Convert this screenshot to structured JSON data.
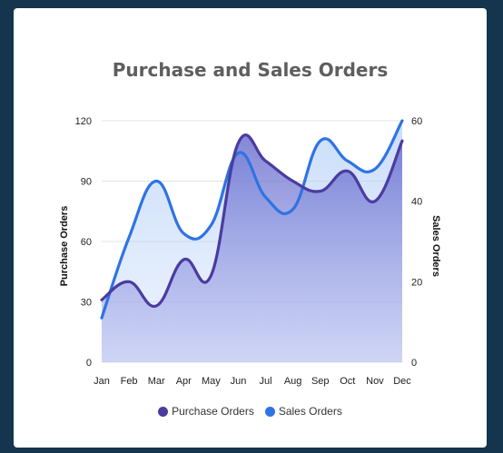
{
  "chart_data": {
    "type": "area",
    "title": "Purchase and Sales Orders",
    "categories": [
      "Jan",
      "Feb",
      "Mar",
      "Apr",
      "May",
      "Jun",
      "Jul",
      "Aug",
      "Sep",
      "Oct",
      "Nov",
      "Dec"
    ],
    "series": [
      {
        "name": "Purchase Orders",
        "axis": "left",
        "color": "#4b3ba0",
        "values": [
          31,
          40,
          28,
          51,
          43,
          109,
          100,
          90,
          85,
          95,
          80,
          110
        ]
      },
      {
        "name": "Sales Orders",
        "axis": "right",
        "color": "#2f73e4",
        "values": [
          11,
          31,
          45,
          32,
          34,
          52,
          41,
          38,
          55,
          50,
          48,
          60
        ]
      }
    ],
    "y_left": {
      "label": "Purchase Orders",
      "range": [
        0,
        120
      ],
      "ticks": [
        0,
        30,
        60,
        90,
        120
      ]
    },
    "y_right": {
      "label": "Sales Orders",
      "range": [
        0,
        60
      ],
      "ticks": [
        0,
        20,
        40,
        60
      ]
    },
    "grid": true,
    "legend_position": "bottom"
  }
}
